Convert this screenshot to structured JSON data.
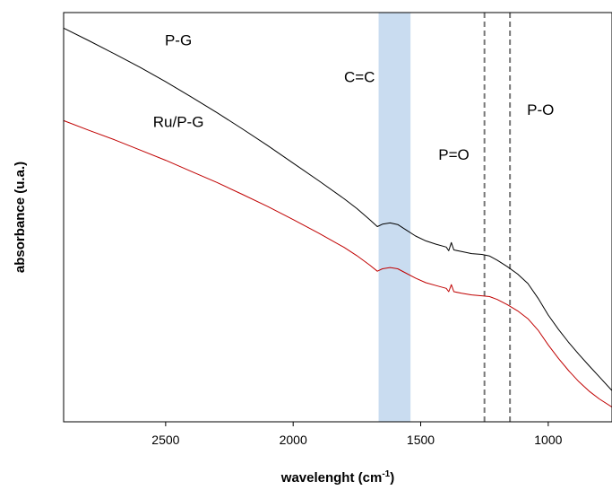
{
  "chart_data": {
    "type": "line",
    "xlabel": "wavelenght (cm",
    "xlabel_sup": "-1",
    "xlabel_tail": ")",
    "ylabel": "absorbance (u.a.)",
    "xlim": [
      2900,
      750
    ],
    "x_reversed": true,
    "ylim": [
      0,
      1
    ],
    "y_ticks_labeled": false,
    "grid": false,
    "x_ticks": [
      2500,
      2000,
      1500,
      1000
    ],
    "x_tick_labels": [
      "2500",
      "2000",
      "1500",
      "1000"
    ],
    "series": [
      {
        "name": "P-G",
        "color": "#000000",
        "x": [
          2900,
          2800,
          2700,
          2600,
          2500,
          2400,
          2300,
          2200,
          2100,
          2000,
          1900,
          1800,
          1750,
          1700,
          1670,
          1650,
          1620,
          1590,
          1560,
          1520,
          1480,
          1440,
          1400,
          1390,
          1380,
          1370,
          1340,
          1300,
          1260,
          1230,
          1200,
          1160,
          1120,
          1080,
          1040,
          1000,
          960,
          920,
          880,
          840,
          800,
          750
        ],
        "values": [
          0.962,
          0.931,
          0.899,
          0.866,
          0.831,
          0.794,
          0.756,
          0.716,
          0.675,
          0.632,
          0.589,
          0.545,
          0.521,
          0.494,
          0.477,
          0.483,
          0.486,
          0.482,
          0.47,
          0.454,
          0.442,
          0.434,
          0.427,
          0.418,
          0.438,
          0.42,
          0.416,
          0.411,
          0.409,
          0.405,
          0.395,
          0.379,
          0.361,
          0.338,
          0.302,
          0.261,
          0.226,
          0.194,
          0.165,
          0.137,
          0.11,
          0.076
        ]
      },
      {
        "name": "Ru/P-G",
        "color": "#c00000",
        "x": [
          2900,
          2800,
          2700,
          2600,
          2500,
          2400,
          2300,
          2200,
          2100,
          2000,
          1900,
          1800,
          1750,
          1700,
          1670,
          1650,
          1620,
          1590,
          1560,
          1520,
          1480,
          1440,
          1400,
          1390,
          1380,
          1370,
          1340,
          1300,
          1260,
          1230,
          1200,
          1160,
          1120,
          1080,
          1040,
          1000,
          960,
          920,
          880,
          840,
          800,
          750
        ],
        "values": [
          0.736,
          0.712,
          0.689,
          0.664,
          0.639,
          0.612,
          0.585,
          0.556,
          0.526,
          0.494,
          0.461,
          0.426,
          0.406,
          0.383,
          0.368,
          0.374,
          0.377,
          0.374,
          0.364,
          0.351,
          0.34,
          0.333,
          0.326,
          0.318,
          0.335,
          0.318,
          0.314,
          0.31,
          0.308,
          0.306,
          0.299,
          0.286,
          0.271,
          0.252,
          0.224,
          0.188,
          0.155,
          0.125,
          0.098,
          0.075,
          0.056,
          0.036
        ]
      }
    ],
    "series_labels": [
      {
        "text": "P-G",
        "color": "#000000",
        "x": 2450,
        "y": 0.92
      },
      {
        "text": "Ru/P-G",
        "color": "#e00000",
        "x": 2450,
        "y": 0.72
      }
    ],
    "highlight_band": {
      "x_from": 1665,
      "x_to": 1540,
      "color": "#c9dcf0",
      "label": "C=C",
      "label_x": 1740,
      "label_y": 0.83
    },
    "reference_lines": [
      {
        "x": 1250,
        "style": "dashed",
        "color": "#777777",
        "label": "P=O",
        "label_x": 1370,
        "label_y": 0.64
      },
      {
        "x": 1150,
        "style": "dashed",
        "color": "#777777",
        "label": "P-O",
        "label_x": 1030,
        "label_y": 0.75
      }
    ]
  }
}
